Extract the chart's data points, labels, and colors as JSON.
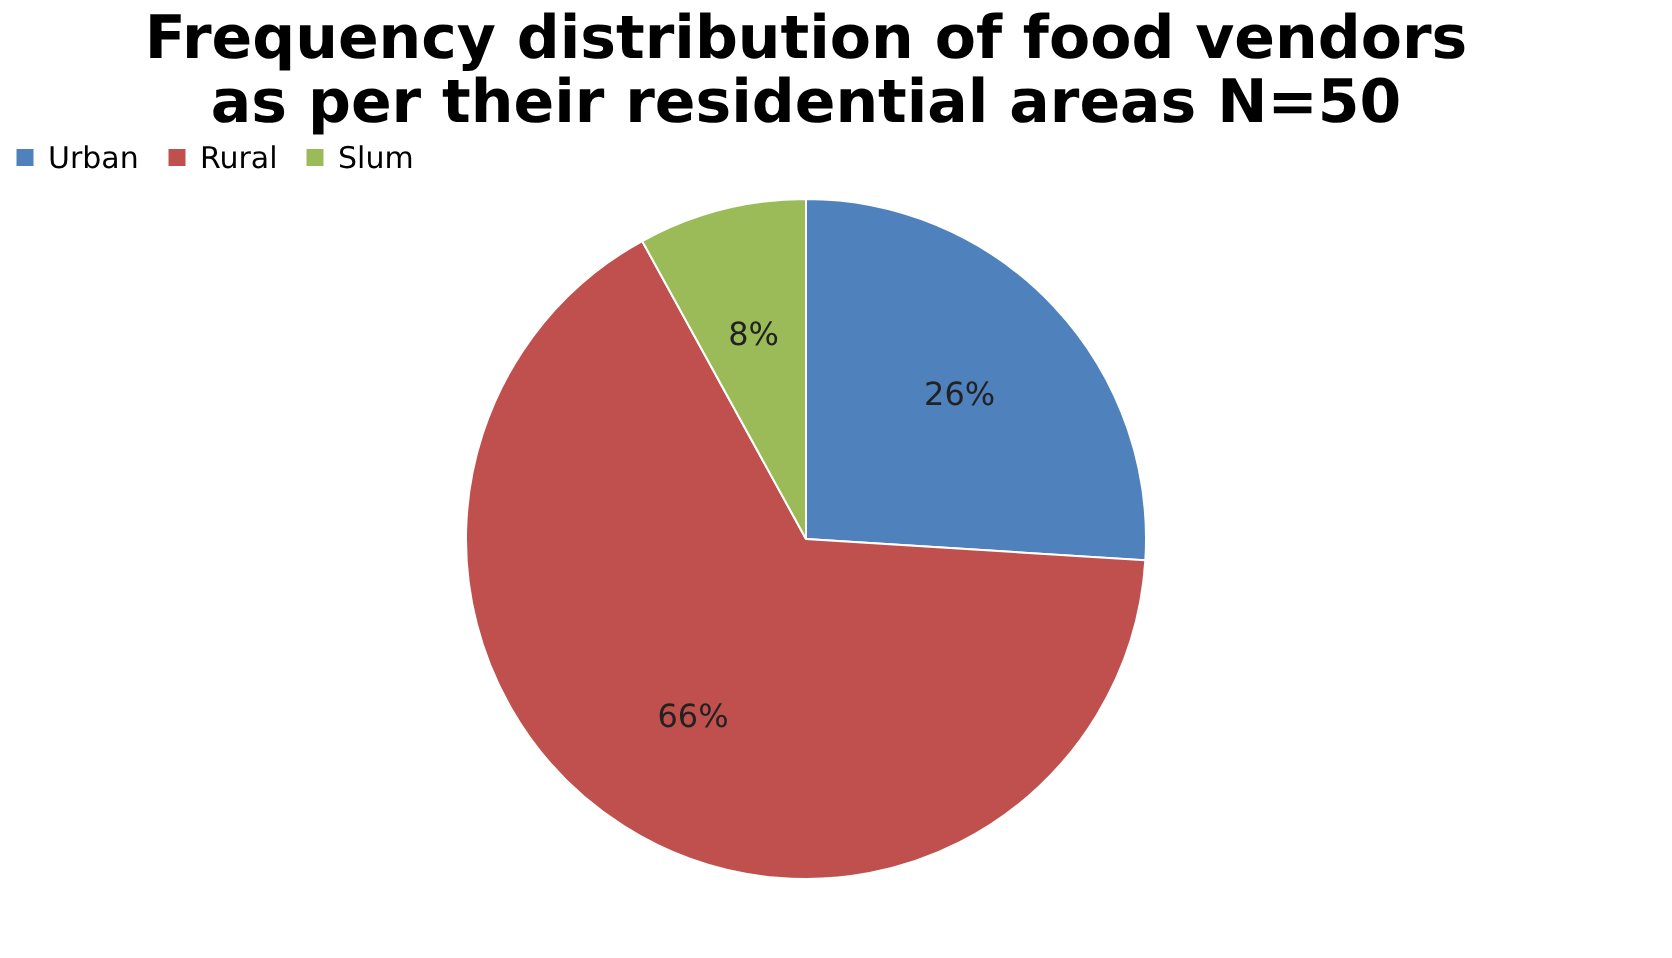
{
  "chart_data": {
    "type": "pie",
    "title": [
      "Frequency distribution of food vendors",
      "as per their  residential areas   N=50"
    ],
    "categories": [
      "Urban",
      "Rural",
      "Slum"
    ],
    "values": [
      26,
      66,
      8
    ],
    "colors": [
      "#4f81bd",
      "#c0504d",
      "#9bbb59"
    ],
    "value_labels": [
      "26%",
      "66%",
      "8%"
    ],
    "legend": "top"
  }
}
